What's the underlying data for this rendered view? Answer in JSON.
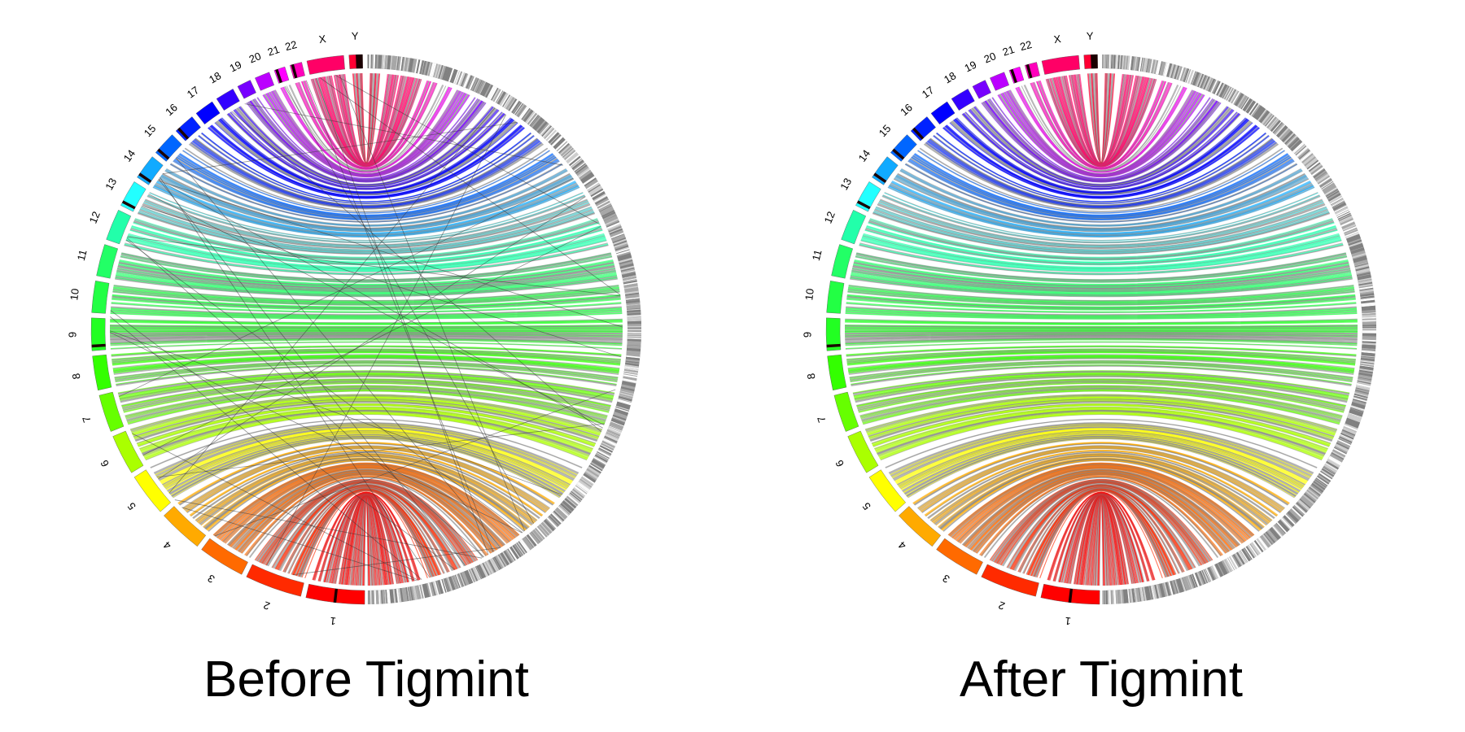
{
  "panels": [
    {
      "title": "Before Tigmint",
      "has_misassembly_links": true
    },
    {
      "title": "After Tigmint",
      "has_misassembly_links": false
    }
  ],
  "chromosomes": [
    {
      "label": "1",
      "length_mb": 248,
      "color": "#ff0000"
    },
    {
      "label": "2",
      "length_mb": 242,
      "color": "#ff2a00"
    },
    {
      "label": "3",
      "length_mb": 198,
      "color": "#ff6a00"
    },
    {
      "label": "4",
      "length_mb": 190,
      "color": "#ffaa00"
    },
    {
      "label": "5",
      "length_mb": 181,
      "color": "#ffff00"
    },
    {
      "label": "6",
      "length_mb": 171,
      "color": "#aaff00"
    },
    {
      "label": "7",
      "length_mb": 159,
      "color": "#66ff00"
    },
    {
      "label": "8",
      "length_mb": 145,
      "color": "#33ff00"
    },
    {
      "label": "9",
      "length_mb": 138,
      "color": "#22ff22"
    },
    {
      "label": "10",
      "length_mb": 134,
      "color": "#22ff44"
    },
    {
      "label": "11",
      "length_mb": 135,
      "color": "#22ff66"
    },
    {
      "label": "12",
      "length_mb": 133,
      "color": "#22ffaa"
    },
    {
      "label": "13",
      "length_mb": 114,
      "color": "#22ffff"
    },
    {
      "label": "14",
      "length_mb": 107,
      "color": "#11aaff"
    },
    {
      "label": "15",
      "length_mb": 102,
      "color": "#0066ff"
    },
    {
      "label": "16",
      "length_mb": 90,
      "color": "#0022ff"
    },
    {
      "label": "17",
      "length_mb": 83,
      "color": "#0000ff"
    },
    {
      "label": "18",
      "length_mb": 80,
      "color": "#3300ff"
    },
    {
      "label": "19",
      "length_mb": 59,
      "color": "#7700ff"
    },
    {
      "label": "20",
      "length_mb": 64,
      "color": "#bb00ff"
    },
    {
      "label": "21",
      "length_mb": 47,
      "color": "#ff00ff"
    },
    {
      "label": "22",
      "length_mb": 51,
      "color": "#ff00bb"
    },
    {
      "label": "X",
      "length_mb": 156,
      "color": "#ff0066"
    },
    {
      "label": "Y",
      "length_mb": 57,
      "color": "#ff0033"
    }
  ],
  "centromere_marks": [
    "1",
    "9",
    "13",
    "14",
    "15",
    "16",
    "21",
    "22",
    "Y"
  ],
  "contig_ring_color": "#888888",
  "link_grey": "#808080"
}
